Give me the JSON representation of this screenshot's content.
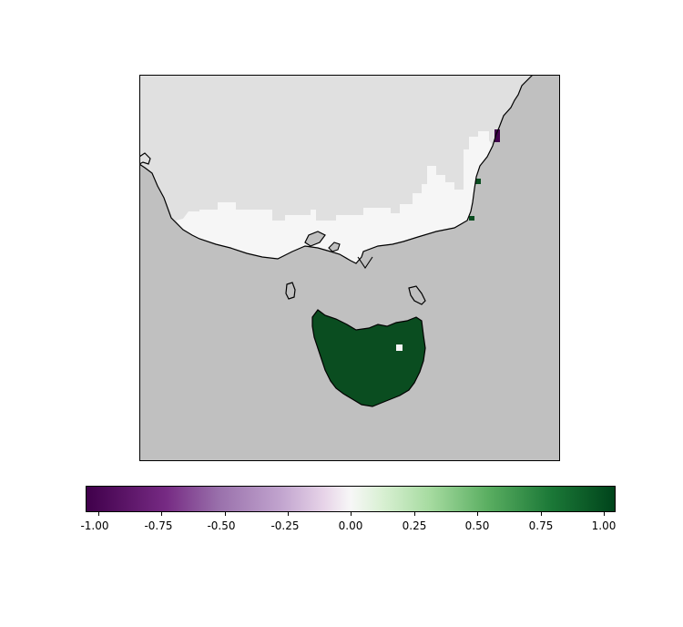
{
  "colorbar": {
    "ticks": [
      "-1.00",
      "-0.75",
      "-0.50",
      "-0.25",
      "0.00",
      "0.25",
      "0.50",
      "0.75",
      "1.00"
    ]
  },
  "colors": {
    "ocean": "#c0c0c0",
    "land_nodata": "#e0e0e0",
    "near_zero": "#f6f6f6",
    "max_positive": "#0a4d20",
    "min_negative": "#40004b"
  }
}
